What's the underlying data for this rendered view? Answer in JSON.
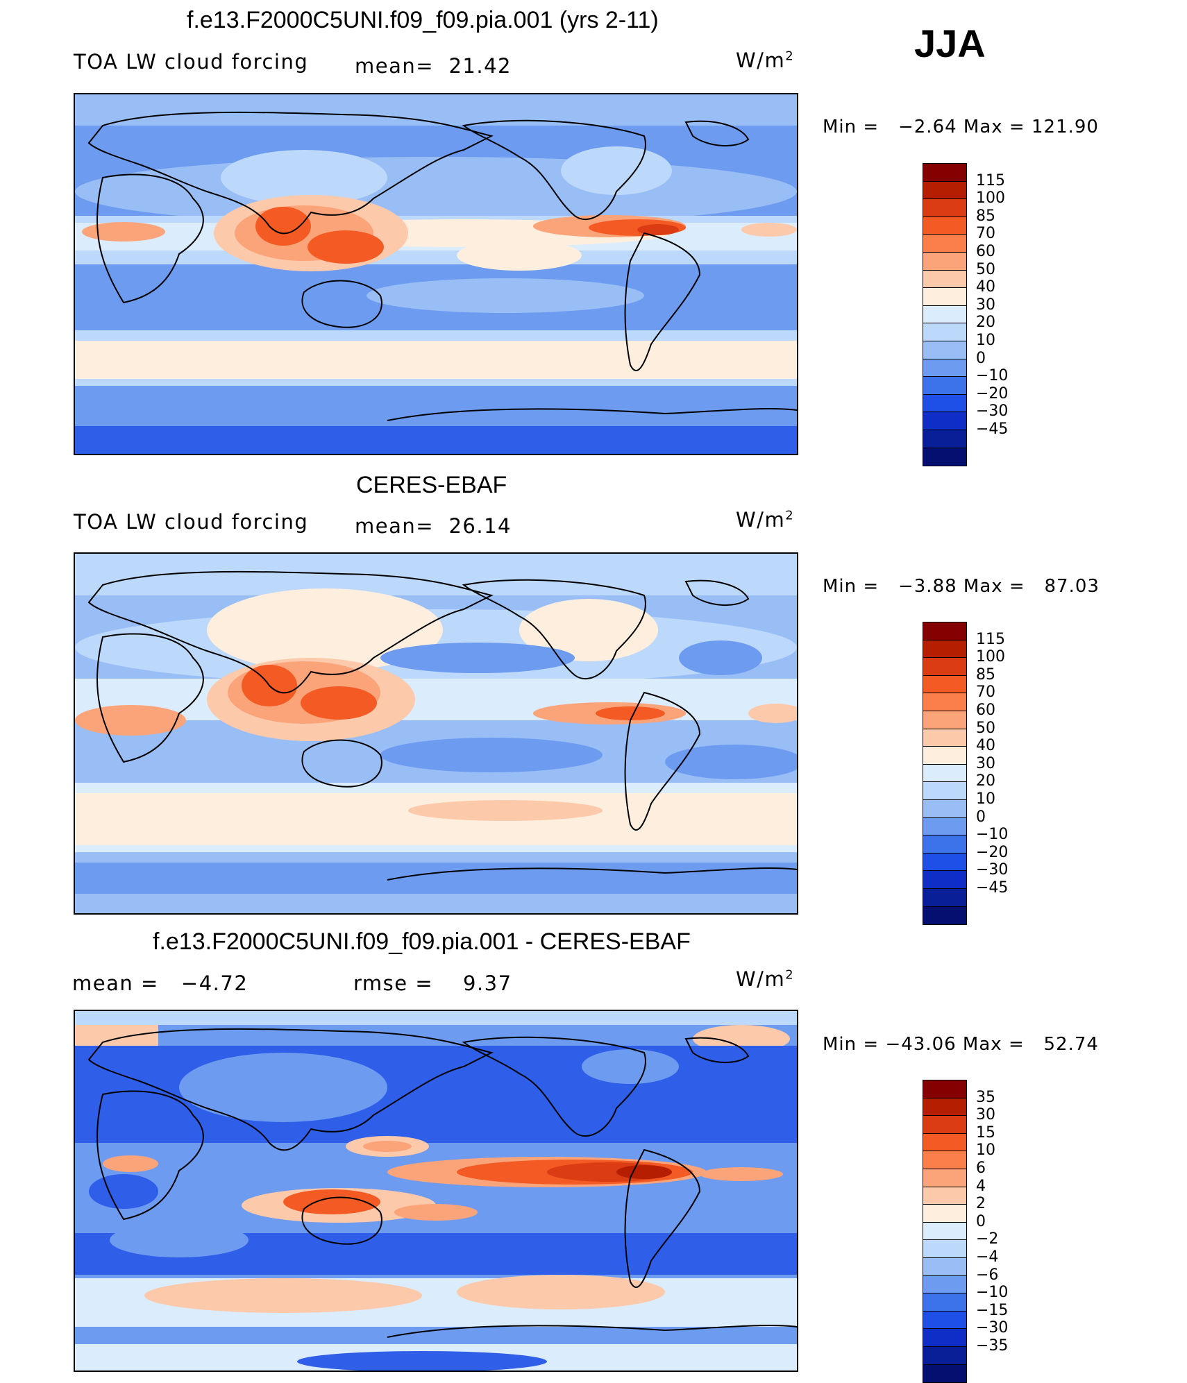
{
  "season": "JJA",
  "panels": [
    {
      "title": "f.e13.F2000C5UNI.f09_f09.pia.001 (yrs 2-11)",
      "left_label": "TOA LW cloud forcing",
      "mid_label": "mean=  21.42",
      "units": "W/m",
      "units_sup": "2",
      "minmax": "Min =   −2.64 Max = 121.90",
      "colorbar_labels": [
        "115",
        "100",
        "85",
        "70",
        "60",
        "50",
        "40",
        "30",
        "20",
        "10",
        "0",
        "−10",
        "−20",
        "−30",
        "−45"
      ]
    },
    {
      "title": "CERES-EBAF",
      "left_label": "TOA LW cloud forcing",
      "mid_label": "mean=  26.14",
      "units": "W/m",
      "units_sup": "2",
      "minmax": "Min =   −3.88 Max =   87.03",
      "colorbar_labels": [
        "115",
        "100",
        "85",
        "70",
        "60",
        "50",
        "40",
        "30",
        "20",
        "10",
        "0",
        "−10",
        "−20",
        "−30",
        "−45"
      ]
    },
    {
      "title": "f.e13.F2000C5UNI.f09_f09.pia.001 - CERES-EBAF",
      "left_label": "mean =   −4.72",
      "mid_label": "rmse =    9.37",
      "units": "W/m",
      "units_sup": "2",
      "minmax": "Min = −43.06 Max =   52.74",
      "colorbar_labels": [
        "35",
        "30",
        "15",
        "10",
        "6",
        "4",
        "2",
        "0",
        "−2",
        "−4",
        "−6",
        "−10",
        "−15",
        "−30",
        "−35"
      ]
    }
  ],
  "colorbar_colors": [
    "#850000",
    "#b51e00",
    "#dc3c13",
    "#f45a23",
    "#fa7f4a",
    "#fba47a",
    "#fdc9ab",
    "#feeedd",
    "#dbecfd",
    "#bcd8fb",
    "#99bdf5",
    "#6c9bf0",
    "#3c73ea",
    "#1e4fe6",
    "#0f2ec8",
    "#091f98",
    "#040f70"
  ],
  "map_colors": {
    "deep_blue": "#2f5ee8",
    "mid_blue": "#6c9bf0",
    "light_blue": "#99bdf5",
    "pale_blue": "#bcd8fb",
    "very_pale_blue": "#dbecfd",
    "cream": "#feeedd",
    "peach": "#fdc9ab",
    "salmon": "#fba47a",
    "orange": "#f45a23",
    "red": "#dc3c13",
    "dark_red": "#b51e00"
  }
}
